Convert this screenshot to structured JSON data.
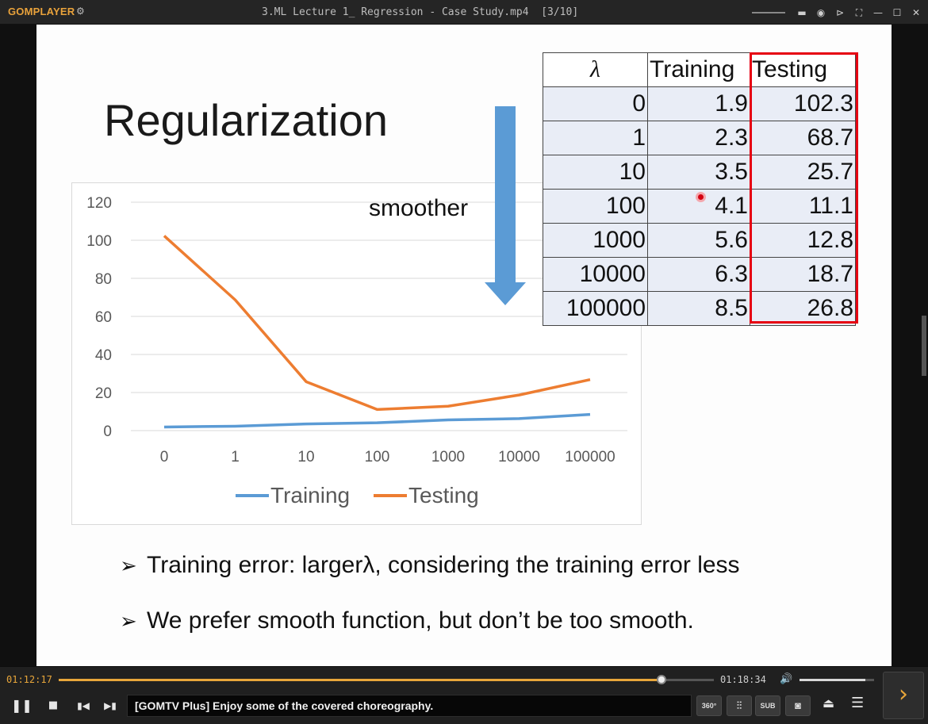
{
  "window": {
    "logo": "GOMPLAYER",
    "title": "3.ML Lecture 1_ Regression - Case Study.mp4  [3/10]"
  },
  "slide": {
    "title": "Regularization",
    "arrow_label": "smoother",
    "table": {
      "headers": [
        "λ",
        "Training",
        "Testing"
      ],
      "rows": [
        [
          "0",
          "1.9",
          "102.3"
        ],
        [
          "1",
          "2.3",
          "68.7"
        ],
        [
          "10",
          "3.5",
          "25.7"
        ],
        [
          "100",
          "4.1",
          "11.1"
        ],
        [
          "1000",
          "5.6",
          "12.8"
        ],
        [
          "10000",
          "6.3",
          "18.7"
        ],
        [
          "100000",
          "8.5",
          "26.8"
        ]
      ]
    },
    "bullets": [
      "Training error: largerλ, considering the training error less",
      "We prefer smooth function, but don’t be too smooth."
    ],
    "bullet_marker": "➢"
  },
  "chart_data": {
    "type": "line",
    "categories": [
      "0",
      "1",
      "10",
      "100",
      "1000",
      "10000",
      "100000"
    ],
    "series": [
      {
        "name": "Training",
        "values": [
          1.9,
          2.3,
          3.5,
          4.1,
          5.6,
          6.3,
          8.5
        ],
        "color": "#5b9bd5"
      },
      {
        "name": "Testing",
        "values": [
          102.3,
          68.7,
          25.7,
          11.1,
          12.8,
          18.7,
          26.8
        ],
        "color": "#ed7d31"
      }
    ],
    "yticks": [
      "0",
      "20",
      "40",
      "60",
      "80",
      "100",
      "120"
    ],
    "ylim": [
      0,
      120
    ],
    "grid": true,
    "legend": "bottom"
  },
  "player": {
    "current_time": "01:12:17",
    "total_time": "01:18:34",
    "progress": 0.92,
    "volume": 0.88,
    "ticker": "[GOMTV Plus] Enjoy some of the covered choreography.",
    "buttons": {
      "b360": "360°",
      "sub": "SUB"
    }
  }
}
